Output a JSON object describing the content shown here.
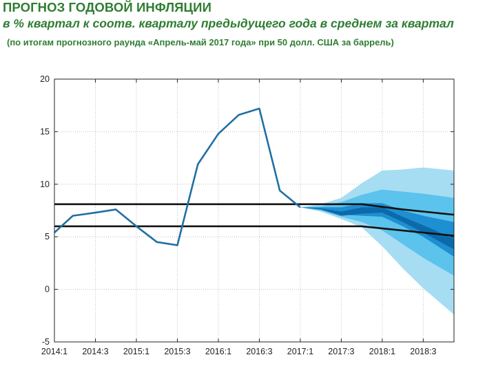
{
  "header": {
    "title": "ПРОГНОЗ ГОДОВОЙ ИНФЛЯЦИИ",
    "subtitle": "в % квартал к соотв. кварталу предыдущего года в среднем за квартал",
    "note": "(по итогам прогнозного раунда «Апрель-май 2017 года» при 50 долл. США за баррель)"
  },
  "colors": {
    "text_green": "#2e7d32",
    "line": "#1f6fa3",
    "band_outer": "#a6ddf3",
    "band_mid": "#5cc3ec",
    "band_inner": "#1e8fd0",
    "band_core": "#0d6aaa",
    "corridor": "#111111"
  },
  "chart_data": {
    "type": "line",
    "title": "",
    "xlabel": "",
    "ylabel": "",
    "ylim": [
      -5,
      20
    ],
    "yticks": [
      -5,
      0,
      5,
      10,
      15,
      20
    ],
    "xlim": [
      0,
      19.5
    ],
    "xtick_labels": [
      "2014:1",
      "2014:3",
      "2015:1",
      "2015:3",
      "2016:1",
      "2016:3",
      "2017:1",
      "2017:3",
      "2018:1",
      "2018:3"
    ],
    "xtick_positions": [
      0,
      2,
      4,
      6,
      8,
      10,
      12,
      14,
      16,
      18
    ],
    "grid": true,
    "series": [
      {
        "name": "",
        "x": [
          0,
          0.9,
          2,
          3,
          4,
          5,
          6,
          7,
          8,
          9,
          10,
          11,
          12
        ],
        "y": [
          5.4,
          7.0,
          7.3,
          7.6,
          6.0,
          4.5,
          4.2,
          11.9,
          14.8,
          16.6,
          17.2,
          9.4,
          7.8
        ]
      }
    ],
    "fan_bands": [
      {
        "x": [
          12,
          13,
          14,
          15,
          16,
          17,
          18,
          19.5
        ],
        "upper": [
          7.8,
          8.1,
          8.7,
          10.1,
          11.3,
          11.4,
          11.6,
          11.3
        ],
        "lower": [
          7.8,
          7.4,
          6.7,
          5.9,
          4.1,
          2.0,
          0.1,
          -2.4
        ]
      },
      {
        "x": [
          12,
          13,
          14,
          15,
          16,
          17,
          18,
          19.5
        ],
        "upper": [
          7.8,
          7.9,
          8.3,
          9.0,
          9.5,
          9.3,
          9.1,
          8.7
        ],
        "lower": [
          7.8,
          7.5,
          6.9,
          6.4,
          5.6,
          4.3,
          3.0,
          1.3
        ]
      },
      {
        "x": [
          12,
          13,
          14,
          15,
          16,
          17,
          18,
          19.5
        ],
        "upper": [
          7.8,
          7.8,
          7.8,
          8.2,
          8.2,
          7.5,
          7.0,
          6.4
        ],
        "lower": [
          7.8,
          7.6,
          7.1,
          7.0,
          6.9,
          6.0,
          5.0,
          3.1
        ]
      },
      {
        "x": [
          12,
          13,
          14,
          15,
          16,
          17,
          18,
          19.5
        ],
        "upper": [
          7.8,
          7.7,
          7.4,
          7.8,
          7.8,
          6.9,
          6.1,
          4.8
        ],
        "lower": [
          7.8,
          7.6,
          7.0,
          7.2,
          7.3,
          6.4,
          5.4,
          3.8
        ]
      }
    ],
    "corridor_lines": [
      {
        "x": [
          0,
          15,
          17,
          19.5
        ],
        "y": [
          8.1,
          8.1,
          7.6,
          7.1
        ]
      },
      {
        "x": [
          0,
          15,
          17,
          19.5
        ],
        "y": [
          6.0,
          6.0,
          5.6,
          5.1
        ]
      }
    ]
  }
}
